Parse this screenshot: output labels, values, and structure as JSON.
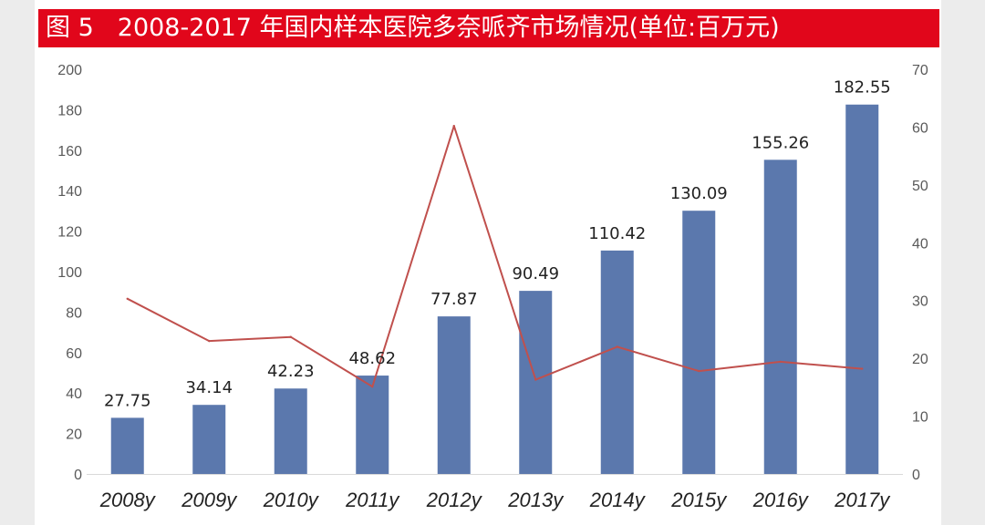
{
  "title": {
    "figure_label": "图 5",
    "text": "2008-2017 年国内样本医院多奈哌齐市场情况(单位:百万元)"
  },
  "colors": {
    "title_bg": "#e1061b",
    "bar": "#5b78ad",
    "line": "#c0504d"
  },
  "chart_data": {
    "type": "bar",
    "categories": [
      "2008y",
      "2009y",
      "2010y",
      "2011y",
      "2012y",
      "2013y",
      "2014y",
      "2015y",
      "2016y",
      "2017y"
    ],
    "series": [
      {
        "type": "bar",
        "axis": "left",
        "values": [
          27.75,
          34.14,
          42.23,
          48.62,
          77.87,
          90.49,
          110.42,
          130.09,
          155.26,
          182.55
        ],
        "data_labels": [
          "27.75",
          "34.14",
          "42.23",
          "48.62",
          "77.87",
          "90.49",
          "110.42",
          "130.09",
          "155.26",
          "182.55"
        ]
      },
      {
        "type": "line",
        "axis": "right",
        "values": [
          30.3,
          23.0,
          23.7,
          15.1,
          60.2,
          16.3,
          22.0,
          17.8,
          19.4,
          18.2
        ]
      }
    ],
    "y_left": {
      "ylim": [
        0,
        200
      ],
      "ticks": [
        "0",
        "20",
        "40",
        "60",
        "80",
        "100",
        "120",
        "140",
        "160",
        "180",
        "200"
      ]
    },
    "y_right": {
      "ylim": [
        0,
        70
      ],
      "ticks": [
        "0",
        "10",
        "20",
        "30",
        "40",
        "50",
        "60",
        "70"
      ]
    },
    "grid": false,
    "legend": "none"
  }
}
